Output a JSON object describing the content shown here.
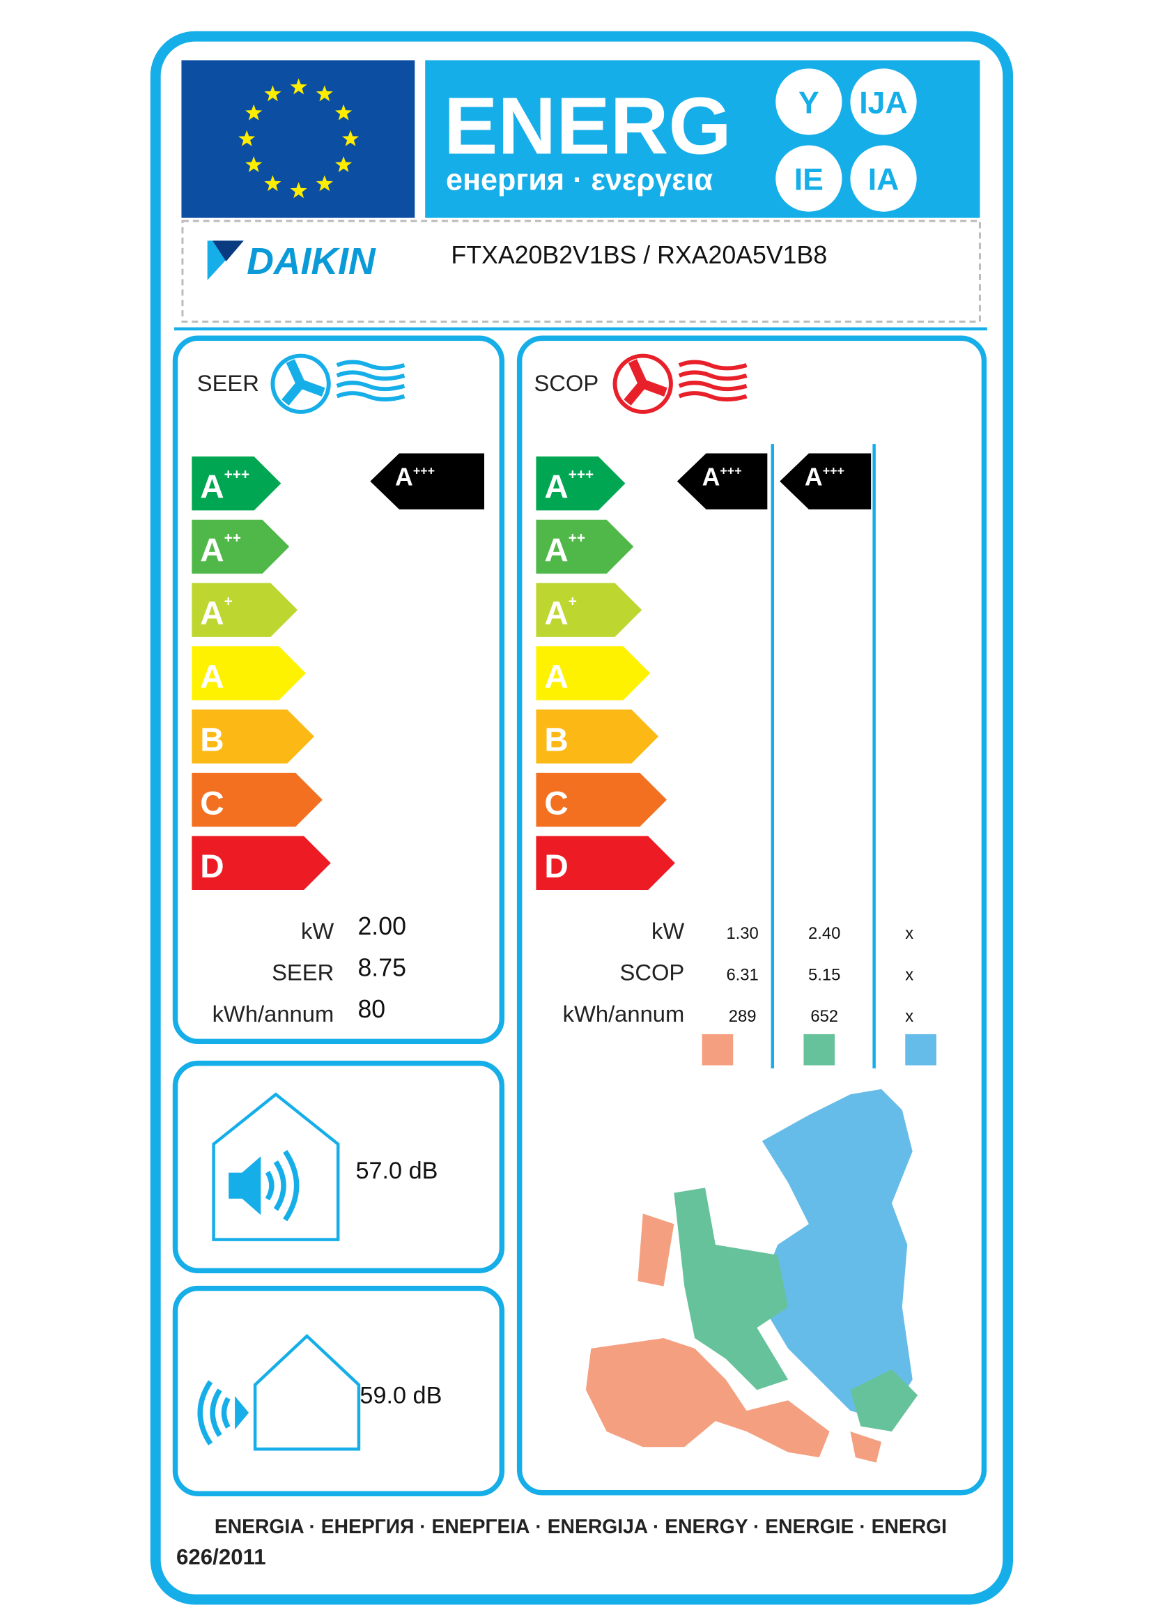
{
  "header": {
    "energ": "ENERG",
    "languages": "енергия · ενεργεια",
    "suffixes": [
      "Y",
      "IJA",
      "IE",
      "IA"
    ]
  },
  "supplier": {
    "name": "DAIKIN",
    "model": "FTXA20B2V1BS / RXA20A5V1B8"
  },
  "classes": [
    {
      "letter": "A",
      "sup": "+++",
      "color": "#00a651"
    },
    {
      "letter": "A",
      "sup": "++",
      "color": "#50b848"
    },
    {
      "letter": "A",
      "sup": "+",
      "color": "#bed630"
    },
    {
      "letter": "A",
      "color": "#fff200"
    },
    {
      "letter": "B",
      "color": "#fcb814"
    },
    {
      "letter": "C",
      "color": "#f37021"
    },
    {
      "letter": "D",
      "color": "#ed1c24"
    }
  ],
  "cooling": {
    "label": "SEER",
    "rating": {
      "letter": "A",
      "sup": "+++"
    },
    "rows": [
      {
        "label": "kW",
        "value": "2.00"
      },
      {
        "label": "SEER",
        "value": "8.75"
      },
      {
        "label": "kWh/annum",
        "value": "80"
      }
    ]
  },
  "heating": {
    "label": "SCOP",
    "zones": [
      {
        "rating": {
          "letter": "A",
          "sup": "+++"
        },
        "color": "#f4a080"
      },
      {
        "rating": {
          "letter": "A",
          "sup": "+++"
        },
        "color": "#66c29a"
      },
      {
        "color": "#66bce8"
      }
    ],
    "rows": [
      {
        "label": "kW",
        "values": [
          "1.30",
          "2.40",
          "x"
        ]
      },
      {
        "label": "SCOP",
        "values": [
          "6.31",
          "5.15",
          "x"
        ]
      },
      {
        "label": "kWh/annum",
        "values": [
          "289",
          "652",
          "x"
        ]
      }
    ]
  },
  "noise": {
    "indoor": {
      "value": "57.0",
      "unit": "dB"
    },
    "outdoor": {
      "value": "59.0",
      "unit": "dB"
    }
  },
  "footer": {
    "languages": "ENERGIA · ЕНЕРГИЯ · ΕΝΕΡΓΕΙΑ · ENERGIJA · ENERGY · ENERGIE · ENERGI",
    "regulation": "626/2011"
  }
}
